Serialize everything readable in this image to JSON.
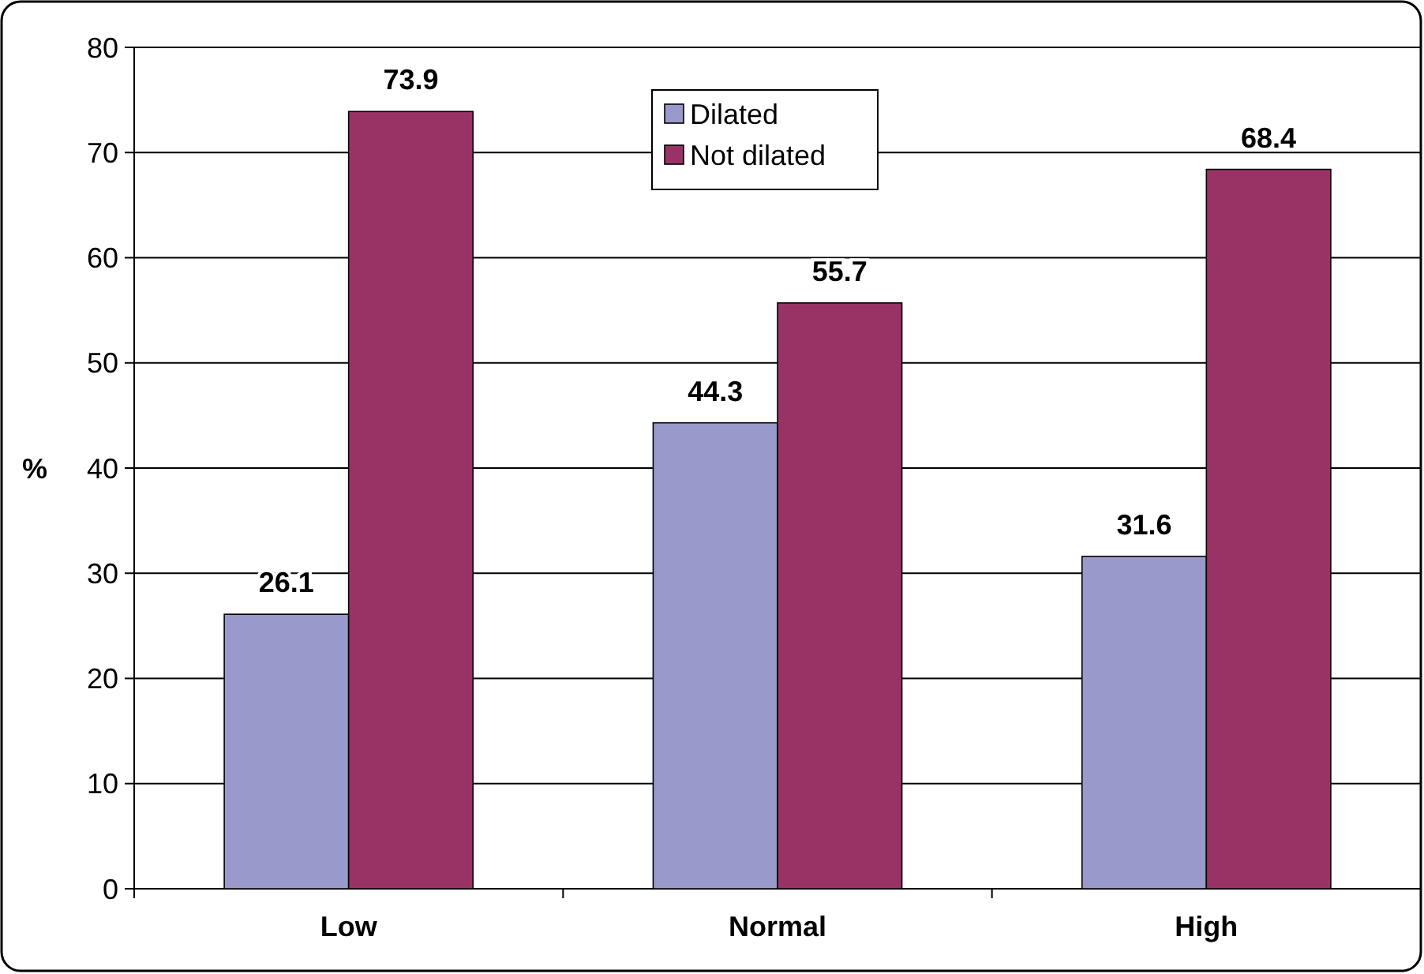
{
  "chart_data": {
    "type": "bar",
    "ylabel": "%",
    "categories": [
      "Low",
      "Normal",
      "High"
    ],
    "series": [
      {
        "name": "Dilated",
        "color": "#9999cc",
        "values": [
          26.1,
          44.3,
          31.6
        ]
      },
      {
        "name": "Not dilated",
        "color": "#993366",
        "values": [
          73.9,
          55.7,
          68.4
        ]
      }
    ],
    "ylim": [
      0,
      80
    ],
    "yticks": [
      0,
      10,
      20,
      30,
      40,
      50,
      60,
      70,
      80
    ],
    "grid": "y",
    "legend": "top",
    "data_labels": true
  }
}
